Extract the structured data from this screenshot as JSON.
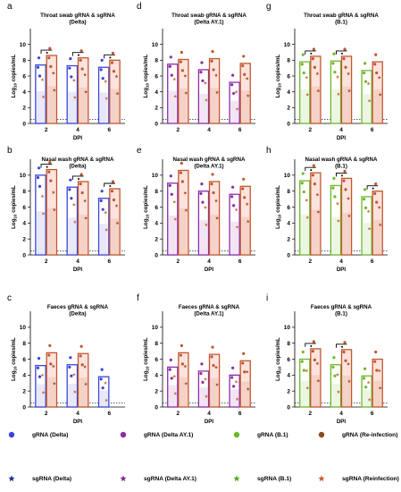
{
  "figure": {
    "legend": [
      {
        "label": "gRNA (Delta)",
        "symbol": "dot",
        "color": "#3a44d8"
      },
      {
        "label": "gRNA (Delta AY.1)",
        "symbol": "dot",
        "color": "#8a2ca8"
      },
      {
        "label": "gRNA (B.1)",
        "symbol": "dot",
        "color": "#6cb828"
      },
      {
        "label": "gRNA (Re-infection)",
        "symbol": "dot",
        "color": "#8a4a20"
      },
      {
        "label": "sgRNA (Delta)",
        "symbol": "star",
        "color": "#1c2a8c"
      },
      {
        "label": "sgRNA (Delta AY.1)",
        "symbol": "star",
        "color": "#7c2a90"
      },
      {
        "label": "sgRNA (B.1)",
        "symbol": "star",
        "color": "#4caa20"
      },
      {
        "label": "sgRNA (Reinfection)",
        "symbol": "star",
        "color": "#c85a2a"
      }
    ]
  },
  "chart_data": [
    {
      "id": "a",
      "letter": "a",
      "title": [
        "Throat swab gRNA & sgRNA",
        "(Delta)"
      ],
      "type": "bar",
      "categories": [
        "2",
        "4",
        "6"
      ],
      "xlabel": "DPI",
      "ylabel": "Log10 copies/mL",
      "ylim": [
        0,
        12
      ],
      "yticks": [
        0,
        2,
        4,
        6,
        8,
        10
      ],
      "primary_color": "#3a44d8",
      "sig_brackets": [
        0,
        1,
        2
      ],
      "series": [
        {
          "name": "gRNA (Delta)",
          "values": [
            7.4,
            7.3,
            7.1
          ]
        },
        {
          "name": "gRNA (Re-infection)",
          "values": [
            8.6,
            8.3,
            8.0
          ]
        }
      ]
    },
    {
      "id": "b",
      "letter": "b",
      "title": [
        "Nasal wash gRNA & sgRNA",
        "(Delta)"
      ],
      "type": "bar",
      "categories": [
        "2",
        "4",
        "6"
      ],
      "xlabel": "DPI",
      "ylabel": "Log10 copies/mL",
      "ylim": [
        0,
        12
      ],
      "yticks": [
        0,
        2,
        4,
        6,
        8,
        10
      ],
      "primary_color": "#3a44d8",
      "sig_brackets": [
        0,
        1,
        2
      ],
      "series": [
        {
          "name": "gRNA (Delta)",
          "values": [
            10.0,
            8.5,
            7.1
          ]
        },
        {
          "name": "gRNA (Re-infection)",
          "values": [
            10.7,
            9.2,
            8.3
          ]
        }
      ]
    },
    {
      "id": "c",
      "letter": "c",
      "title": [
        "Faeces gRNA & sgRNA",
        "(Delta)"
      ],
      "type": "bar",
      "categories": [
        "2",
        "4",
        "6"
      ],
      "xlabel": "DPI",
      "ylabel": "Log10 copies/mL",
      "ylim": [
        0,
        12
      ],
      "yticks": [
        0,
        2,
        4,
        6,
        8,
        10
      ],
      "primary_color": "#3a44d8",
      "sig_brackets": [],
      "series": [
        {
          "name": "gRNA (Delta)",
          "values": [
            5.2,
            5.3,
            3.8
          ]
        },
        {
          "name": "gRNA (Re-infection)",
          "values": [
            6.8,
            6.7,
            0
          ]
        }
      ]
    },
    {
      "id": "d",
      "letter": "d",
      "title": [
        "Throat swab gRNA & sgRNA",
        "(Delta AY.1)"
      ],
      "type": "bar",
      "categories": [
        "2",
        "4",
        "6"
      ],
      "xlabel": "",
      "ylabel": "Log10 copies/mL",
      "ylim": [
        0,
        12
      ],
      "yticks": [
        0,
        2,
        4,
        6,
        8,
        10
      ],
      "primary_color": "#8a2ca8",
      "sig_brackets": [],
      "series": [
        {
          "name": "gRNA (Delta AY.1)",
          "values": [
            7.5,
            6.8,
            5.2
          ]
        },
        {
          "name": "gRNA (Re-infection)",
          "values": [
            8.1,
            8.2,
            7.6
          ]
        }
      ]
    },
    {
      "id": "e",
      "letter": "e",
      "title": [
        "Nasal wash gRNA & sgRNA",
        "(Delta AY.1)"
      ],
      "type": "bar",
      "categories": [
        "2",
        "4",
        "6"
      ],
      "xlabel": "DPI",
      "ylabel": "Log10 copies/mL",
      "ylim": [
        0,
        12
      ],
      "yticks": [
        0,
        2,
        4,
        6,
        8,
        10
      ],
      "primary_color": "#8a2ca8",
      "sig_brackets": [],
      "series": [
        {
          "name": "gRNA (Delta AY.1)",
          "values": [
            9.0,
            8.0,
            7.6
          ]
        },
        {
          "name": "gRNA (Re-infection)",
          "values": [
            10.6,
            9.2,
            8.6
          ]
        }
      ]
    },
    {
      "id": "f",
      "letter": "f",
      "title": [
        "Faeces gRNA & sgRNA",
        "(Delta AY.1)"
      ],
      "type": "bar",
      "categories": [
        "2",
        "4",
        "6"
      ],
      "xlabel": "DPI",
      "ylabel": "Log10 copies/mL",
      "ylim": [
        0,
        12
      ],
      "yticks": [
        0,
        2,
        4,
        6,
        8,
        10
      ],
      "primary_color": "#8a2ca8",
      "sig_brackets": [],
      "series": [
        {
          "name": "gRNA (Delta AY.1)",
          "values": [
            5.0,
            4.5,
            4.0
          ]
        },
        {
          "name": "gRNA (Re-infection)",
          "values": [
            6.8,
            6.6,
            5.8
          ]
        }
      ]
    },
    {
      "id": "g",
      "letter": "g",
      "title": [
        "Throat swab gRNA & sgRNA",
        "(B.1)"
      ],
      "type": "bar",
      "categories": [
        "2",
        "4",
        "6"
      ],
      "xlabel": "DPI",
      "ylabel": "Log10 copies/mL",
      "ylim": [
        0,
        12
      ],
      "yticks": [
        0,
        2,
        4,
        6,
        8,
        10
      ],
      "primary_color": "#6cb828",
      "sig_brackets": [
        0,
        1
      ],
      "series": [
        {
          "name": "gRNA (B.1)",
          "values": [
            7.8,
            7.9,
            6.7
          ]
        },
        {
          "name": "gRNA (Re-infection)",
          "values": [
            8.5,
            8.5,
            7.8
          ]
        }
      ]
    },
    {
      "id": "h",
      "letter": "h",
      "title": [
        "Nasal wash gRNA & sgRNA",
        "(B.1)"
      ],
      "type": "bar",
      "categories": [
        "2",
        "4",
        "6"
      ],
      "xlabel": "DPI",
      "ylabel": "Log10 copies/mL",
      "ylim": [
        0,
        12
      ],
      "yticks": [
        0,
        2,
        4,
        6,
        8,
        10
      ],
      "primary_color": "#6cb828",
      "sig_brackets": [
        0,
        1,
        2
      ],
      "series": [
        {
          "name": "gRNA (B.1)",
          "values": [
            9.3,
            8.7,
            7.3
          ]
        },
        {
          "name": "gRNA (Re-infection)",
          "values": [
            10.3,
            9.6,
            8.0
          ]
        }
      ]
    },
    {
      "id": "i",
      "letter": "i",
      "title": [
        "Faeces gRNA & sgRNA",
        "(B.1)"
      ],
      "type": "bar",
      "categories": [
        "2",
        "4",
        "6"
      ],
      "xlabel": "DPI",
      "ylabel": "Log10 copies/mL",
      "ylim": [
        0,
        12
      ],
      "yticks": [
        0,
        2,
        4,
        6,
        8,
        10
      ],
      "primary_color": "#6cb828",
      "sig_brackets": [
        0,
        1
      ],
      "series": [
        {
          "name": "gRNA (B.1)",
          "values": [
            6.0,
            5.3,
            3.9
          ]
        },
        {
          "name": "gRNA (Re-infection)",
          "values": [
            7.3,
            7.2,
            6.0
          ]
        }
      ]
    }
  ]
}
